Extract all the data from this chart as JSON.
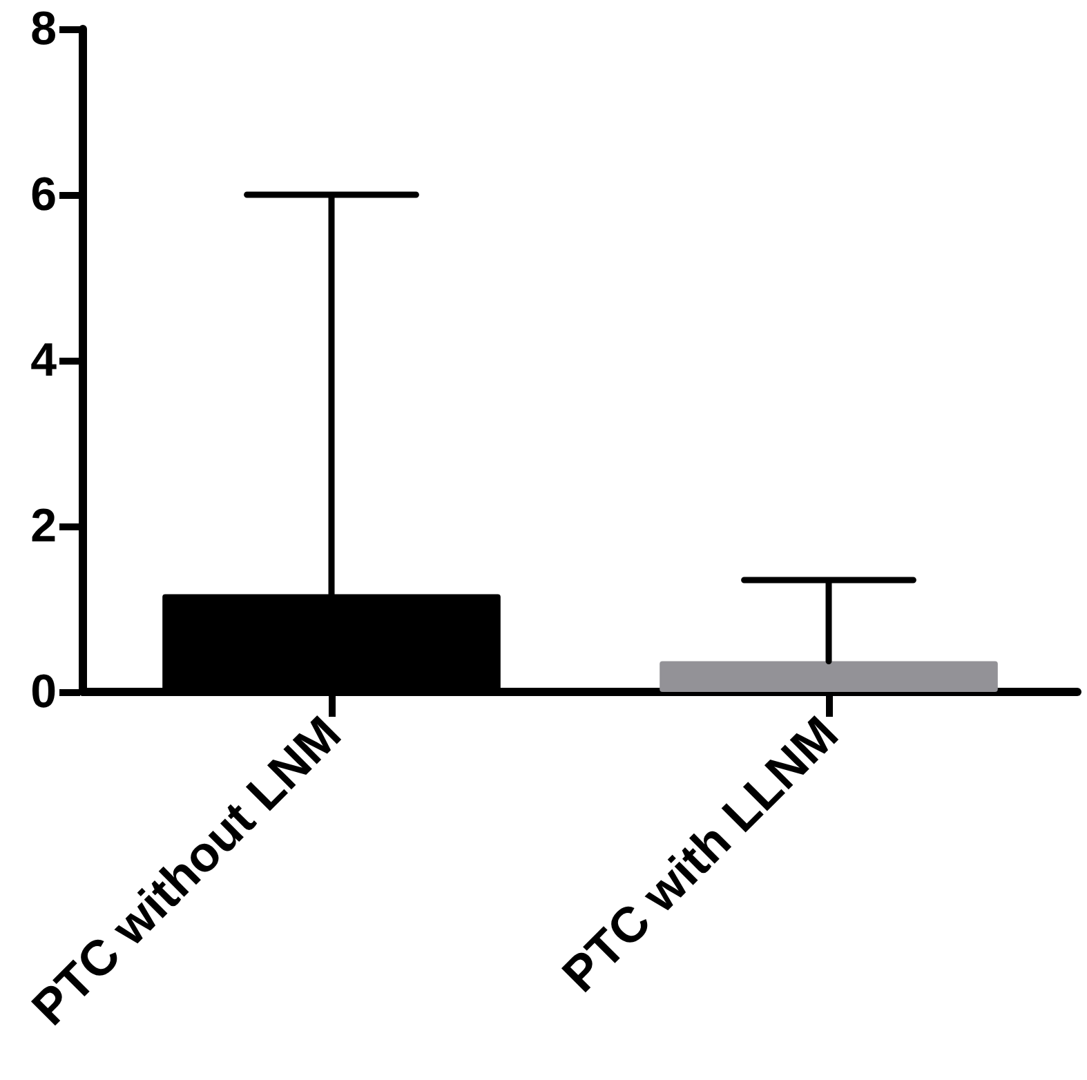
{
  "chart_data": {
    "type": "bar",
    "categories": [
      "PTC without LNM",
      "PTC with LLNM"
    ],
    "values": [
      1.18,
      0.37
    ],
    "colors": [
      "#000000",
      "#939297"
    ],
    "errors": [
      [
        1.18,
        6.0
      ],
      [
        0.37,
        1.35
      ]
    ],
    "ylim": [
      0,
      8
    ],
    "yticks": [
      0,
      2,
      4,
      6,
      8
    ],
    "grid": false
  }
}
